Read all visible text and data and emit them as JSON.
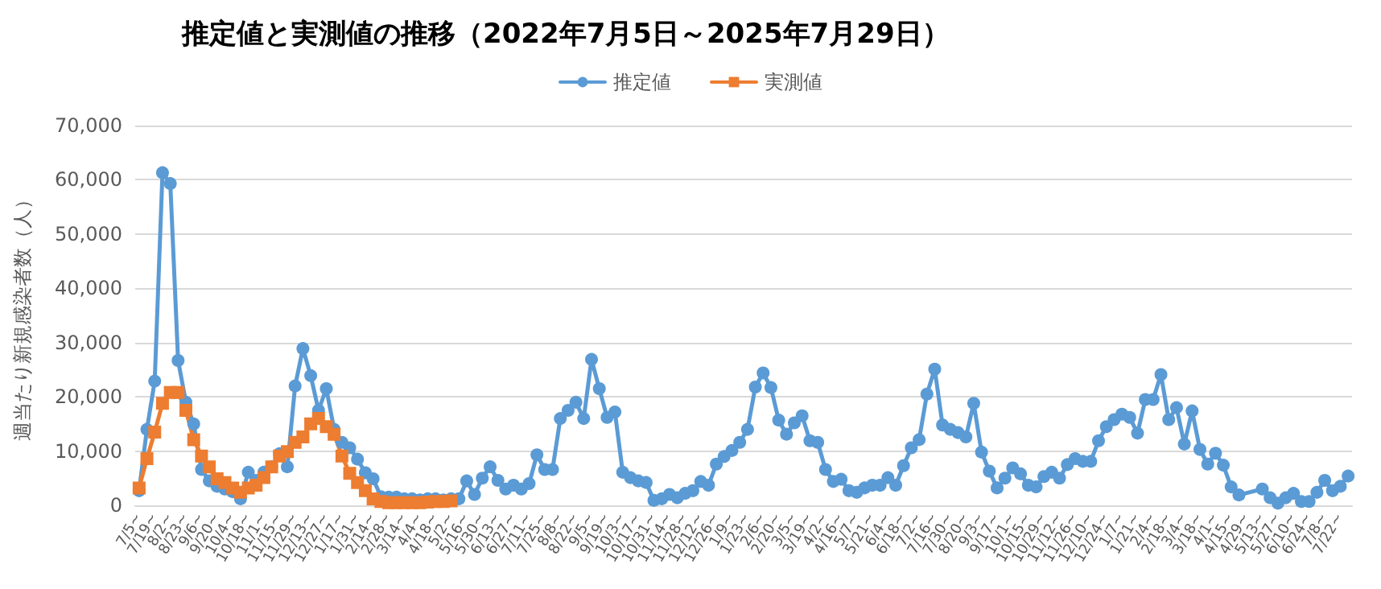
{
  "chart_data": {
    "type": "line",
    "title": "推定値と実測値の推移（2022年7月5日～2025年7月29日）",
    "ylabel": "週当たり新規感染者数（人）",
    "categories": [
      "7/5~",
      null,
      "7/19~",
      null,
      "8/2~",
      null,
      "8/23~",
      null,
      "9/6~",
      null,
      "9/20~",
      null,
      "10/4~",
      null,
      "10/18~",
      null,
      "11/1~",
      null,
      "11/15~",
      null,
      "11/29~",
      null,
      "12/13~",
      null,
      "12/27~",
      null,
      "1/17~",
      null,
      "1/31~",
      null,
      "2/14~",
      null,
      "2/28~",
      null,
      "3/14~",
      null,
      "4/4~",
      null,
      "4/18~",
      null,
      "5/2~",
      null,
      "5/16~",
      null,
      "5/30~",
      null,
      "6/13~",
      null,
      "6/27~",
      null,
      "7/11~",
      null,
      "7/25~",
      null,
      "8/8~",
      null,
      "8/22~",
      null,
      "9/5~",
      null,
      "9/19~",
      null,
      "10/3~",
      null,
      "10/17~",
      null,
      "10/31~",
      null,
      "11/14~",
      null,
      "11/28~",
      null,
      "12/12~",
      null,
      "12/26~",
      null,
      "1/9~",
      null,
      "1/23~",
      null,
      "2/6~",
      null,
      "2/20~",
      null,
      "3/5~",
      null,
      "3/19~",
      null,
      "4/2~",
      null,
      "4/16~",
      null,
      "5/7~",
      null,
      "5/21~",
      null,
      "6/4~",
      null,
      "6/18~",
      null,
      "7/2~",
      null,
      "7/16~",
      null,
      "7/30~",
      null,
      "8/20~",
      null,
      "9/3~",
      null,
      "9/17~",
      null,
      "10/1~",
      null,
      "10/15~",
      null,
      "10/29~",
      null,
      "11/12~",
      null,
      "11/26~",
      null,
      "12/10~",
      null,
      "12/24~",
      null,
      "1/7~",
      null,
      "1/21~",
      null,
      "2/4~",
      null,
      "2/18~",
      null,
      "3/4~",
      null,
      "3/18~",
      null,
      "4/1~",
      null,
      "4/15~",
      null,
      "4/29~",
      null,
      "5/13~",
      null,
      "5/27~",
      null,
      "6/10~",
      null,
      "6/24~",
      null,
      "7/8~",
      null,
      "7/22~",
      null
    ],
    "series": [
      {
        "name": "推定値",
        "color": "#5b9bd5",
        "marker": "circle",
        "values": [
          2700,
          14000,
          22900,
          61300,
          59300,
          26700,
          19000,
          15000,
          6600,
          4500,
          3500,
          3000,
          2500,
          1200,
          6100,
          4600,
          6100,
          7100,
          9500,
          7100,
          22000,
          28900,
          23900,
          17500,
          21500,
          14000,
          11600,
          10600,
          8500,
          6000,
          4900,
          1600,
          1500,
          1500,
          1200,
          1200,
          1000,
          1200,
          1200,
          1000,
          1200,
          1200,
          4500,
          2000,
          5000,
          7100,
          4600,
          3000,
          3700,
          3000,
          4000,
          9300,
          6600,
          6600,
          16000,
          17500,
          19000,
          16000,
          26900,
          21500,
          16200,
          17200,
          6100,
          5100,
          4500,
          4200,
          900,
          1200,
          2000,
          1400,
          2200,
          2700,
          4400,
          3700,
          7600,
          9000,
          10100,
          11600,
          14000,
          21800,
          24400,
          21700,
          15700,
          13100,
          15200,
          16500,
          11900,
          11600,
          6600,
          4400,
          4800,
          2700,
          2400,
          3200,
          3700,
          3700,
          5100,
          3700,
          7300,
          10600,
          12100,
          20500,
          25100,
          14800,
          14000,
          13400,
          12600,
          18800,
          9800,
          6300,
          3200,
          5000,
          6900,
          5800,
          3700,
          3400,
          5300,
          6100,
          5000,
          7500,
          8600,
          8100,
          8100,
          11900,
          14500,
          15800,
          16800,
          16200,
          13300,
          19500,
          19500,
          24100,
          15800,
          18000,
          11300,
          17400,
          10300,
          7600,
          9600,
          7400,
          3400,
          1900,
          null,
          null,
          3000,
          1400,
          400,
          1400,
          2200,
          700,
          700,
          2400,
          4600,
          2700,
          3500,
          5400
        ]
      },
      {
        "name": "実測値",
        "color": "#ed7d31",
        "marker": "square",
        "values": [
          3200,
          8600,
          13500,
          18800,
          20800,
          20800,
          17500,
          12100,
          9100,
          7100,
          4900,
          4200,
          3200,
          2400,
          3200,
          3700,
          5100,
          7100,
          9100,
          9900,
          11600,
          12600,
          15000,
          16000,
          14500,
          13100,
          9100,
          5900,
          4200,
          2700,
          1200,
          700,
          500,
          500,
          500,
          500,
          500,
          600,
          700,
          700,
          800,
          null,
          null,
          null,
          null,
          null,
          null,
          null,
          null,
          null,
          null,
          null,
          null,
          null,
          null,
          null,
          null,
          null,
          null,
          null,
          null,
          null,
          null,
          null,
          null,
          null,
          null,
          null,
          null,
          null,
          null,
          null,
          null,
          null,
          null,
          null,
          null,
          null,
          null,
          null,
          null,
          null,
          null,
          null,
          null,
          null,
          null,
          null,
          null,
          null,
          null,
          null,
          null,
          null,
          null,
          null,
          null,
          null,
          null,
          null,
          null,
          null,
          null,
          null,
          null,
          null,
          null,
          null,
          null,
          null,
          null,
          null,
          null,
          null,
          null,
          null,
          null,
          null,
          null,
          null,
          null,
          null,
          null,
          null,
          null,
          null,
          null,
          null,
          null,
          null,
          null,
          null,
          null,
          null,
          null,
          null,
          null,
          null,
          null,
          null,
          null,
          null,
          null,
          null,
          null,
          null,
          null,
          null,
          null,
          null,
          null,
          null,
          null,
          null,
          null,
          null
        ]
      }
    ],
    "ylim": [
      0,
      70000
    ],
    "yticks": [
      0,
      {
        "value": 10000,
        "label": "10,000"
      },
      {
        "value": 20000,
        "label": "20,000"
      },
      {
        "value": 30000,
        "label": "30,000"
      },
      {
        "value": 40000,
        "label": "40,000"
      },
      {
        "value": 50000,
        "label": "50,000"
      },
      {
        "value": 60000,
        "label": "60,000"
      },
      {
        "value": 70000,
        "label": "70,000"
      }
    ],
    "grid": "y",
    "legend": "top",
    "line_style": "solid"
  }
}
